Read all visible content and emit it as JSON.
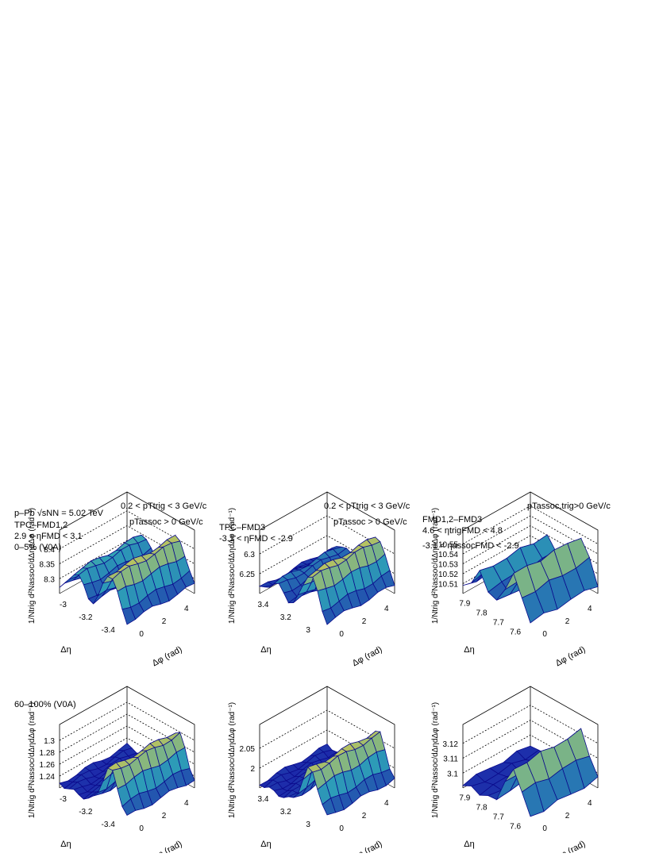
{
  "figure": {
    "system_label": "p–Pb √sNN = 5.02 TeV",
    "centrality_top": "0–5% (V0A)",
    "centrality_bottom": "60–100% (V0A)",
    "pt_cut_trig": "0.2 < pTtrig < 3 GeV/c",
    "pt_cut_assoc": "pTassoc > 0 GeV/c",
    "pt_cut_fmd": "pTassoc,trig>0 GeV/c",
    "col_labels": [
      {
        "name": "TPC–FMD1,2",
        "eta": "2.9 < ηFMD < 3.1"
      },
      {
        "name": "TPC–FMD3",
        "eta": "-3.1 < ηFMD < -2.9"
      },
      {
        "name": "FMD1,2–FMD3",
        "eta": "4.6 < ηtrigFMD < 4.8",
        "eta2": "-3.1 < ηassocFMD < -2.9"
      }
    ],
    "z_title": "1/Ntrig d²Nassoc/dΔηdΔφ (rad⁻¹)",
    "x_title": "Δφ (rad)",
    "y_title": "Δη",
    "colors": {
      "low": "#1a1aa8",
      "mid": "#2ea0b8",
      "high": "#f2d13a",
      "mesh": "#0b0b8c"
    }
  },
  "chart_data": [
    {
      "type": "surface",
      "row": 0,
      "col": 0,
      "xlabel": "Δφ (rad)",
      "ylabel": "Δη",
      "zlabel": "1/Ntrig d²Nassoc/dΔηdΔφ (rad⁻¹)",
      "x_ticks": [
        "0",
        "2",
        "4"
      ],
      "y_ticks": [
        "-3",
        "-3.2",
        "-3.4"
      ],
      "z_ticks": [
        "8.3",
        "8.35",
        "8.4"
      ],
      "xlim": [
        -1.57,
        4.71
      ],
      "ylim": [
        -3.5,
        -2.9
      ],
      "zlim": [
        8.25,
        8.45
      ],
      "z_min_est": 8.28,
      "z_max_est": 8.44,
      "shape": "near-side and away-side ridges, away-side higher"
    },
    {
      "type": "surface",
      "row": 0,
      "col": 1,
      "xlabel": "Δφ (rad)",
      "ylabel": "Δη",
      "zlabel": "1/Ntrig d²Nassoc/dΔηdΔφ (rad⁻¹)",
      "x_ticks": [
        "0",
        "2",
        "4"
      ],
      "y_ticks": [
        "3.4",
        "3.2",
        "3"
      ],
      "z_ticks": [
        "6.25",
        "6.3"
      ],
      "xlim": [
        -1.57,
        4.71
      ],
      "ylim": [
        2.9,
        3.5
      ],
      "zlim": [
        6.22,
        6.36
      ],
      "z_min_est": 6.24,
      "z_max_est": 6.34,
      "shape": "small near-side ridge, large away-side ridge"
    },
    {
      "type": "surface",
      "row": 0,
      "col": 2,
      "xlabel": "Δφ (rad)",
      "ylabel": "Δη",
      "zlabel": "1/Ntrig d²Nassoc/dΔηdΔφ (rad⁻¹)",
      "x_ticks": [
        "0",
        "2",
        "4"
      ],
      "y_ticks": [
        "7.9",
        "7.8",
        "7.7",
        "7.6"
      ],
      "z_ticks": [
        "10.51",
        "10.52",
        "10.53",
        "10.54",
        "10.55"
      ],
      "xlim": [
        -1.57,
        4.71
      ],
      "ylim": [
        7.5,
        7.95
      ],
      "zlim": [
        10.5,
        10.56
      ],
      "z_min_est": 10.51,
      "z_max_est": 10.555,
      "shape": "near-side and away-side ridges, coarse binning"
    },
    {
      "type": "surface",
      "row": 1,
      "col": 0,
      "xlabel": "Δφ (rad)",
      "ylabel": "Δη",
      "zlabel": "1/Ntrig d²Nassoc/dΔηdΔφ (rad⁻¹)",
      "x_ticks": [
        "0",
        "2",
        "4"
      ],
      "y_ticks": [
        "-3",
        "-3.2",
        "-3.4"
      ],
      "z_ticks": [
        "1.24",
        "1.26",
        "1.28",
        "1.3"
      ],
      "xlim": [
        -1.57,
        4.71
      ],
      "ylim": [
        -3.5,
        -2.9
      ],
      "zlim": [
        1.23,
        1.32
      ],
      "z_min_est": 1.24,
      "z_max_est": 1.31,
      "shape": "single away-side ridge"
    },
    {
      "type": "surface",
      "row": 1,
      "col": 1,
      "xlabel": "Δφ (rad)",
      "ylabel": "Δη",
      "zlabel": "1/Ntrig d²Nassoc/dΔηdΔφ (rad⁻¹)",
      "x_ticks": [
        "0",
        "2",
        "4"
      ],
      "y_ticks": [
        "3.4",
        "3.2",
        "3"
      ],
      "z_ticks": [
        "2",
        "2.05"
      ],
      "xlim": [
        -1.57,
        4.71
      ],
      "ylim": [
        2.9,
        3.5
      ],
      "zlim": [
        1.98,
        2.1
      ],
      "z_min_est": 1.99,
      "z_max_est": 2.09,
      "shape": "single away-side ridge"
    },
    {
      "type": "surface",
      "row": 1,
      "col": 2,
      "xlabel": "Δφ (rad)",
      "ylabel": "Δη",
      "zlabel": "1/Ntrig d²Nassoc/dΔηdΔφ (rad⁻¹)",
      "x_ticks": [
        "0",
        "2",
        "4"
      ],
      "y_ticks": [
        "7.9",
        "7.8",
        "7.7",
        "7.6"
      ],
      "z_ticks": [
        "3.1",
        "3.11",
        "3.12"
      ],
      "xlim": [
        -1.57,
        4.71
      ],
      "ylim": [
        7.5,
        7.95
      ],
      "zlim": [
        3.09,
        3.13
      ],
      "z_min_est": 3.095,
      "z_max_est": 3.125,
      "shape": "single away-side ridge, coarse binning"
    }
  ]
}
